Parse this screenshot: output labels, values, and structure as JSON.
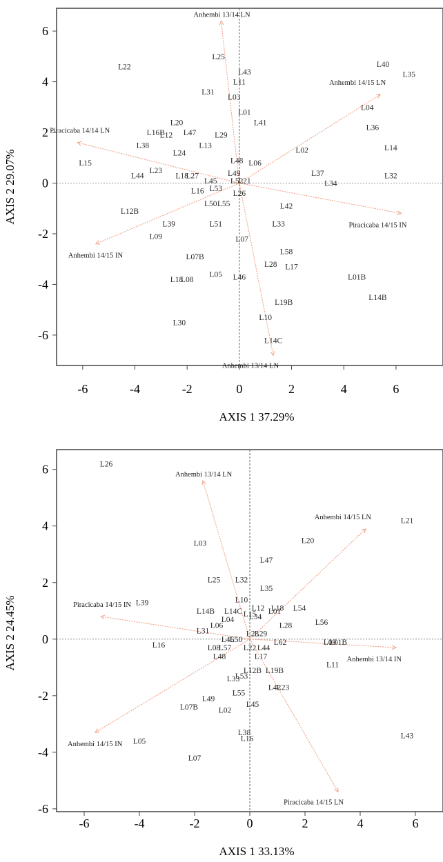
{
  "chart_data": [
    {
      "type": "scatter",
      "subtype": "biplot",
      "xlabel": "AXIS 1 37.29%",
      "ylabel": "AXIS 2 29.07%",
      "xlim": [
        -7,
        7.8
      ],
      "ylim": [
        -7.2,
        6.9
      ],
      "xticks": [
        -6,
        -4,
        -2,
        0,
        2,
        4,
        6
      ],
      "yticks": [
        -6,
        -4,
        -2,
        0,
        2,
        4,
        6
      ],
      "arrow_color": "#f0a088",
      "points": [
        {
          "label": "L22",
          "x": -4.4,
          "y": 4.6
        },
        {
          "label": "L25",
          "x": -0.8,
          "y": 5.0
        },
        {
          "label": "L43",
          "x": 0.2,
          "y": 4.4
        },
        {
          "label": "L11",
          "x": 0.0,
          "y": 4.0
        },
        {
          "label": "L31",
          "x": -1.2,
          "y": 3.6
        },
        {
          "label": "L03",
          "x": -0.2,
          "y": 3.4
        },
        {
          "label": "L01",
          "x": 0.2,
          "y": 2.8
        },
        {
          "label": "L41",
          "x": 0.8,
          "y": 2.4
        },
        {
          "label": "L40",
          "x": 5.5,
          "y": 4.7
        },
        {
          "label": "L35",
          "x": 6.5,
          "y": 4.3
        },
        {
          "label": "L04",
          "x": 4.9,
          "y": 3.0
        },
        {
          "label": "L36",
          "x": 5.1,
          "y": 2.2
        },
        {
          "label": "L14",
          "x": 5.8,
          "y": 1.4
        },
        {
          "label": "L02",
          "x": 2.4,
          "y": 1.3
        },
        {
          "label": "L37",
          "x": 3.0,
          "y": 0.4
        },
        {
          "label": "L34",
          "x": 3.5,
          "y": 0.0
        },
        {
          "label": "L32",
          "x": 5.8,
          "y": 0.3
        },
        {
          "label": "L20",
          "x": -2.4,
          "y": 2.4
        },
        {
          "label": "L16B",
          "x": -3.2,
          "y": 2.0
        },
        {
          "label": "L12",
          "x": -2.8,
          "y": 1.9
        },
        {
          "label": "L47",
          "x": -1.9,
          "y": 2.0
        },
        {
          "label": "L29",
          "x": -0.7,
          "y": 1.9
        },
        {
          "label": "L13",
          "x": -1.3,
          "y": 1.5
        },
        {
          "label": "L38",
          "x": -3.7,
          "y": 1.5
        },
        {
          "label": "L24",
          "x": -2.3,
          "y": 1.2
        },
        {
          "label": "L15",
          "x": -5.9,
          "y": 0.8
        },
        {
          "label": "L48",
          "x": -0.1,
          "y": 0.9
        },
        {
          "label": "L06",
          "x": 0.6,
          "y": 0.8
        },
        {
          "label": "L49",
          "x": -0.2,
          "y": 0.4
        },
        {
          "label": "L44",
          "x": -3.9,
          "y": 0.3
        },
        {
          "label": "L23",
          "x": -3.2,
          "y": 0.5
        },
        {
          "label": "L18",
          "x": -2.2,
          "y": 0.3
        },
        {
          "label": "L27",
          "x": -1.8,
          "y": 0.3
        },
        {
          "label": "L45",
          "x": -1.1,
          "y": 0.1
        },
        {
          "label": "L52",
          "x": -0.1,
          "y": 0.1
        },
        {
          "label": "L21",
          "x": 0.2,
          "y": 0.1
        },
        {
          "label": "L53",
          "x": -0.9,
          "y": -0.2
        },
        {
          "label": "L16",
          "x": -1.6,
          "y": -0.3
        },
        {
          "label": "L26",
          "x": 0.0,
          "y": -0.4
        },
        {
          "label": "L12B",
          "x": -4.2,
          "y": -1.1
        },
        {
          "label": "L50",
          "x": -1.1,
          "y": -0.8
        },
        {
          "label": "L55",
          "x": -0.6,
          "y": -0.8
        },
        {
          "label": "L42",
          "x": 1.8,
          "y": -0.9
        },
        {
          "label": "L39",
          "x": -2.7,
          "y": -1.6
        },
        {
          "label": "L51",
          "x": -0.9,
          "y": -1.6
        },
        {
          "label": "L33",
          "x": 1.5,
          "y": -1.6
        },
        {
          "label": "L09",
          "x": -3.2,
          "y": -2.1
        },
        {
          "label": "L07",
          "x": 0.1,
          "y": -2.2
        },
        {
          "label": "L07B",
          "x": -1.7,
          "y": -2.9
        },
        {
          "label": "L58",
          "x": 1.8,
          "y": -2.7
        },
        {
          "label": "L28",
          "x": 1.2,
          "y": -3.2
        },
        {
          "label": "L17",
          "x": 2.0,
          "y": -3.3
        },
        {
          "label": "L05",
          "x": -0.9,
          "y": -3.6
        },
        {
          "label": "L46",
          "x": 0.0,
          "y": -3.7
        },
        {
          "label": "L18",
          "x": -2.4,
          "y": -3.8
        },
        {
          "label": "L08",
          "x": -2.0,
          "y": -3.8
        },
        {
          "label": "L01B",
          "x": 4.5,
          "y": -3.7
        },
        {
          "label": "L19B",
          "x": 1.7,
          "y": -4.7
        },
        {
          "label": "L14B",
          "x": 5.3,
          "y": -4.5
        },
        {
          "label": "L10",
          "x": 1.0,
          "y": -5.3
        },
        {
          "label": "L30",
          "x": -2.3,
          "y": -5.5
        },
        {
          "label": "L14C",
          "x": 1.3,
          "y": -6.2
        }
      ],
      "vectors": [
        {
          "label": "Anhembi 13/14 LN",
          "x": -0.7,
          "y": 6.4
        },
        {
          "label": "Anhembi 14/15 LN",
          "x": 5.4,
          "y": 3.5
        },
        {
          "label": "Piracicaba 14/14 LN",
          "x": -6.2,
          "y": 1.6
        },
        {
          "label": "Piracicaba 14/15 IN",
          "x": 6.2,
          "y": -1.2
        },
        {
          "label": "Anhembi 14/15 IN",
          "x": -5.5,
          "y": -2.4
        },
        {
          "label": "Anhembi 13/14 LN",
          "x": 1.3,
          "y": -6.8
        }
      ]
    },
    {
      "type": "scatter",
      "subtype": "biplot",
      "xlabel": "AXIS 1 33.13%",
      "ylabel": "AXIS 2 24.45%",
      "xlim": [
        -7,
        7
      ],
      "ylim": [
        -6.1,
        6.7
      ],
      "xticks": [
        -6,
        -4,
        -2,
        0,
        2,
        4,
        6
      ],
      "yticks": [
        -6,
        -4,
        -2,
        0,
        2,
        4,
        6
      ],
      "arrow_color": "#f0a088",
      "points": [
        {
          "label": "L26",
          "x": -5.2,
          "y": 6.2
        },
        {
          "label": "L21",
          "x": 5.7,
          "y": 4.2
        },
        {
          "label": "L20",
          "x": 2.1,
          "y": 3.5
        },
        {
          "label": "L03",
          "x": -1.8,
          "y": 3.4
        },
        {
          "label": "L47",
          "x": 0.6,
          "y": 2.8
        },
        {
          "label": "L25",
          "x": -1.3,
          "y": 2.1
        },
        {
          "label": "L32",
          "x": -0.3,
          "y": 2.1
        },
        {
          "label": "L35",
          "x": 0.6,
          "y": 1.8
        },
        {
          "label": "L39",
          "x": -3.9,
          "y": 1.3
        },
        {
          "label": "L10",
          "x": -0.3,
          "y": 1.4
        },
        {
          "label": "L12",
          "x": 0.3,
          "y": 1.1
        },
        {
          "label": "L18",
          "x": 1.0,
          "y": 1.1
        },
        {
          "label": "L01",
          "x": 0.9,
          "y": 1.0
        },
        {
          "label": "L54",
          "x": 1.8,
          "y": 1.1
        },
        {
          "label": "L14B",
          "x": -1.6,
          "y": 1.0
        },
        {
          "label": "L14C",
          "x": -0.6,
          "y": 1.0
        },
        {
          "label": "L15",
          "x": 0.0,
          "y": 0.9
        },
        {
          "label": "L34",
          "x": 0.2,
          "y": 0.8
        },
        {
          "label": "L04",
          "x": -0.8,
          "y": 0.7
        },
        {
          "label": "L56",
          "x": 2.6,
          "y": 0.6
        },
        {
          "label": "L28",
          "x": 1.3,
          "y": 0.5
        },
        {
          "label": "L06",
          "x": -1.2,
          "y": 0.5
        },
        {
          "label": "L31",
          "x": -1.7,
          "y": 0.3
        },
        {
          "label": "L29",
          "x": 0.4,
          "y": 0.2
        },
        {
          "label": "L23",
          "x": 0.1,
          "y": 0.2
        },
        {
          "label": "L16",
          "x": -3.3,
          "y": -0.2
        },
        {
          "label": "L46",
          "x": -0.8,
          "y": 0.0
        },
        {
          "label": "L50",
          "x": -0.5,
          "y": 0.0
        },
        {
          "label": "L09",
          "x": 2.9,
          "y": -0.1
        },
        {
          "label": "L01B",
          "x": 3.2,
          "y": -0.1
        },
        {
          "label": "L62",
          "x": 1.1,
          "y": -0.1
        },
        {
          "label": "L08",
          "x": -1.3,
          "y": -0.3
        },
        {
          "label": "L57",
          "x": -0.9,
          "y": -0.3
        },
        {
          "label": "L22",
          "x": 0.0,
          "y": -0.3
        },
        {
          "label": "L44",
          "x": 0.5,
          "y": -0.3
        },
        {
          "label": "L17",
          "x": 0.4,
          "y": -0.6
        },
        {
          "label": "L48",
          "x": -1.1,
          "y": -0.6
        },
        {
          "label": "L11",
          "x": 3.0,
          "y": -0.9
        },
        {
          "label": "L12B",
          "x": 0.1,
          "y": -1.1
        },
        {
          "label": "L19B",
          "x": 0.9,
          "y": -1.1
        },
        {
          "label": "L53",
          "x": -0.3,
          "y": -1.3
        },
        {
          "label": "L33",
          "x": -0.6,
          "y": -1.4
        },
        {
          "label": "L42",
          "x": 0.9,
          "y": -1.7
        },
        {
          "label": "L23",
          "x": 1.2,
          "y": -1.7
        },
        {
          "label": "L55",
          "x": -0.4,
          "y": -1.9
        },
        {
          "label": "L49",
          "x": -1.5,
          "y": -2.1
        },
        {
          "label": "L45",
          "x": 0.1,
          "y": -2.3
        },
        {
          "label": "L07B",
          "x": -2.2,
          "y": -2.4
        },
        {
          "label": "L02",
          "x": -0.9,
          "y": -2.5
        },
        {
          "label": "L38",
          "x": -0.2,
          "y": -3.3
        },
        {
          "label": "L16",
          "x": -0.1,
          "y": -3.5
        },
        {
          "label": "L05",
          "x": -4.0,
          "y": -3.6
        },
        {
          "label": "L43",
          "x": 5.7,
          "y": -3.4
        },
        {
          "label": "L07",
          "x": -2.0,
          "y": -4.2
        }
      ],
      "vectors": [
        {
          "label": "Anhembi 13/14 LN",
          "x": -1.7,
          "y": 5.6
        },
        {
          "label": "Anhembi 14/15 LN",
          "x": 4.2,
          "y": 3.9
        },
        {
          "label": "Piracicaba 14/15 IN",
          "x": -5.4,
          "y": 0.8
        },
        {
          "label": "Anhembi 13/14 IN",
          "x": 5.3,
          "y": -0.3
        },
        {
          "label": "Anhembi 14/15 IN",
          "x": -5.6,
          "y": -3.3
        },
        {
          "label": "Piracicaba 14/15 LN",
          "x": 3.2,
          "y": -5.4
        }
      ]
    }
  ]
}
